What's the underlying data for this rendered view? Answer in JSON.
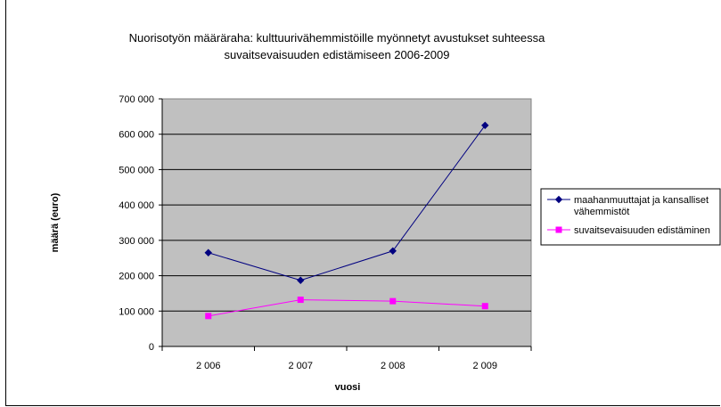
{
  "chart_data": {
    "type": "line",
    "title_lines": [
      "Nuorisotyön määräraha: kulttuurivähemmistöille myönnetyt avustukset suhteessa",
      "suvaitsevaisuuden edistämiseen 2006-2009"
    ],
    "xlabel": "vuosi",
    "ylabel": "määrä (euro)",
    "categories": [
      "2 006",
      "2 007",
      "2 008",
      "2 009"
    ],
    "y_ticks": [
      "0",
      "100 000",
      "200 000",
      "300 000",
      "400 000",
      "500 000",
      "600 000",
      "700 000"
    ],
    "ylim": [
      0,
      700000
    ],
    "grid": true,
    "plot_background": "#c0c0c0",
    "legend_position": "right",
    "series": [
      {
        "name_lines": [
          "maahanmuuttajat ja kansalliset",
          "vähemmistöt"
        ],
        "color": "#000080",
        "marker": "diamond",
        "values": [
          265000,
          187000,
          270000,
          625000
        ]
      },
      {
        "name_lines": [
          "suvaitsevaisuuden edistäminen"
        ],
        "color": "#ff00ff",
        "marker": "square",
        "values": [
          86000,
          132000,
          128000,
          114000
        ]
      }
    ]
  }
}
